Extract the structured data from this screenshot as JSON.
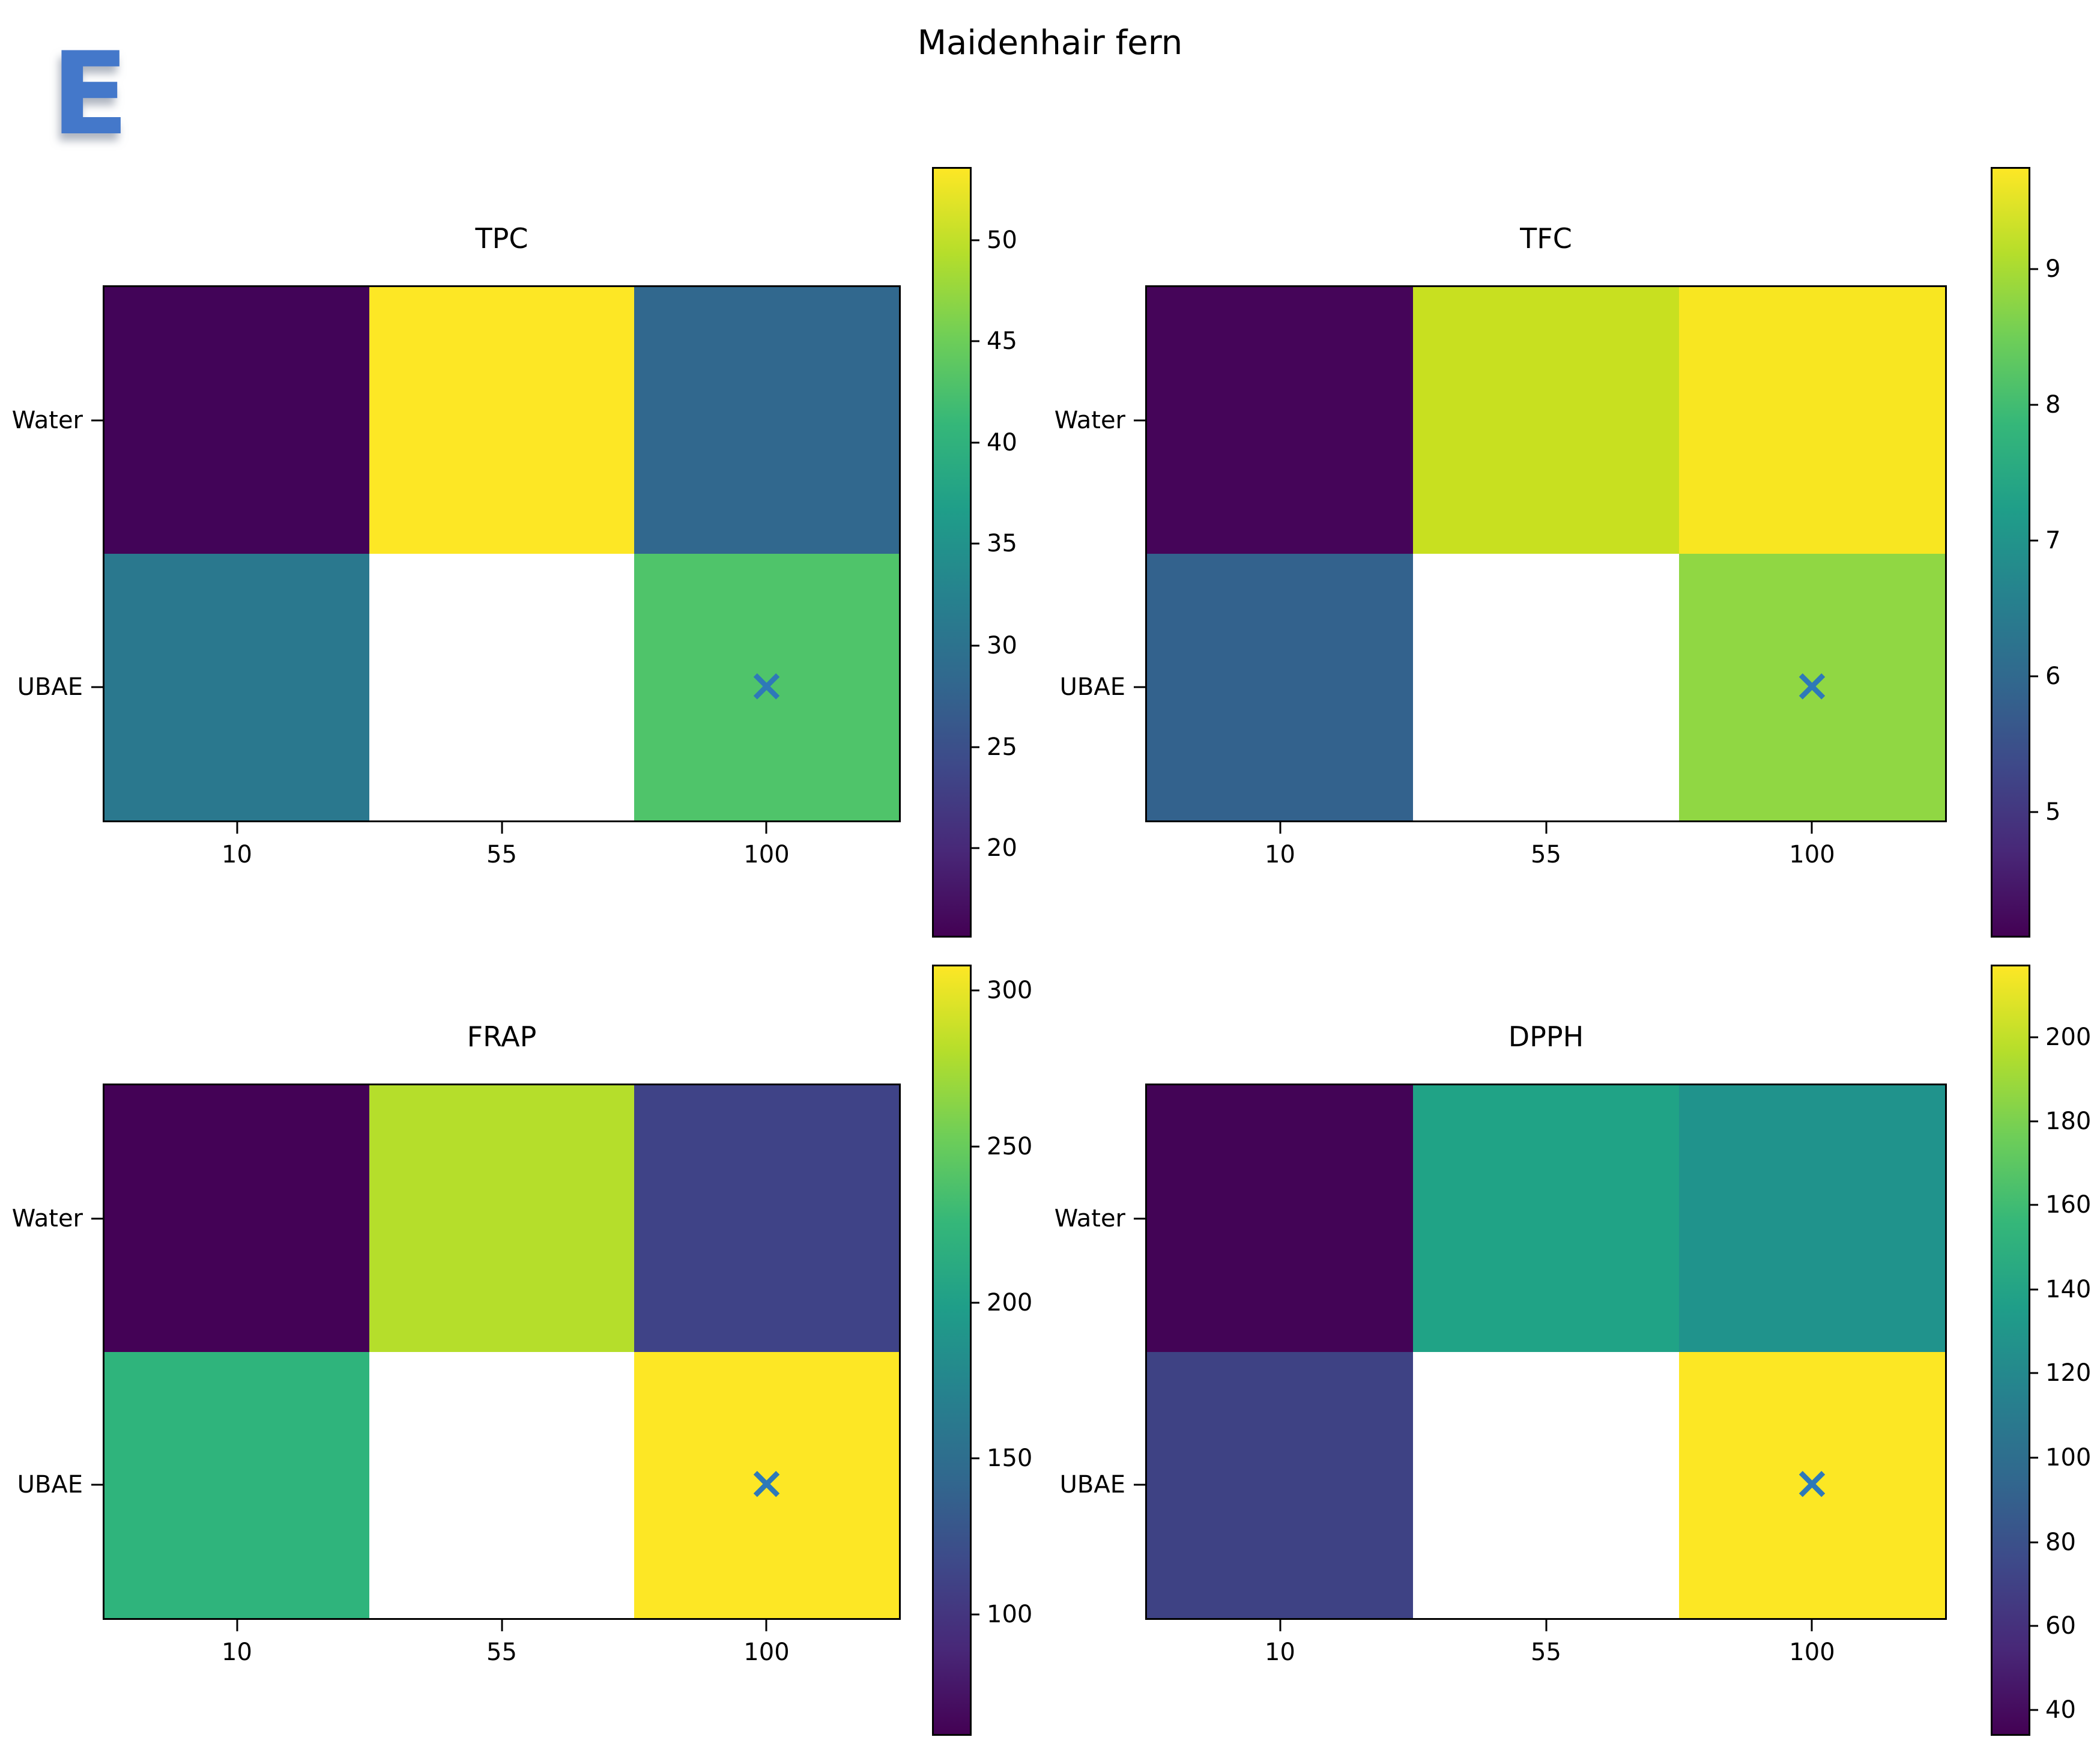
{
  "figure": {
    "suptitle": "Maidenhair fern",
    "corner_label": "E",
    "corner_label_color": "#4478ca",
    "marker_glyph": "×",
    "marker_color": "#2e79b8",
    "background": "#ffffff"
  },
  "axis": {
    "row_labels": [
      "Water",
      "UBAE"
    ],
    "col_labels": [
      "10",
      "55",
      "100"
    ]
  },
  "viridis_stops": [
    "#440154",
    "#482878",
    "#3e4989",
    "#31688e",
    "#26828e",
    "#1f9e89",
    "#35b779",
    "#6ece58",
    "#b5de2b",
    "#fde725"
  ],
  "panels": [
    {
      "title": "TPC",
      "cells": [
        [
          "#420458",
          "#fde725",
          "#31688e"
        ],
        [
          "#2a788e",
          null,
          "#4fc46a"
        ]
      ],
      "colorbar": [
        {
          "v": "50",
          "p": 9.3
        },
        {
          "v": "45",
          "p": 22.5
        },
        {
          "v": "40",
          "p": 35.7
        },
        {
          "v": "35",
          "p": 48.9
        },
        {
          "v": "30",
          "p": 62.2
        },
        {
          "v": "25",
          "p": 75.4
        },
        {
          "v": "20",
          "p": 88.6
        }
      ]
    },
    {
      "title": "TFC",
      "cells": [
        [
          "#450559",
          "#c8e020",
          "#f8e621"
        ],
        [
          "#33628d",
          null,
          "#90d743"
        ]
      ],
      "colorbar": [
        {
          "v": "9",
          "p": 13.1
        },
        {
          "v": "8",
          "p": 30.8
        },
        {
          "v": "7",
          "p": 48.5
        },
        {
          "v": "6",
          "p": 66.2
        },
        {
          "v": "5",
          "p": 83.9
        }
      ]
    },
    {
      "title": "FRAP",
      "cells": [
        [
          "#440256",
          "#b5de2b",
          "#3f4387"
        ],
        [
          "#2fb47c",
          null,
          "#fde725"
        ]
      ],
      "colorbar": [
        {
          "v": "300",
          "p": 3.1
        },
        {
          "v": "250",
          "p": 23.5
        },
        {
          "v": "200",
          "p": 43.8
        },
        {
          "v": "150",
          "p": 64.1
        },
        {
          "v": "100",
          "p": 84.4
        }
      ]
    },
    {
      "title": "DPPH",
      "cells": [
        [
          "#430456",
          "#20a386",
          "#20938c"
        ],
        [
          "#3e4284",
          null,
          "#fce724"
        ]
      ],
      "colorbar": [
        {
          "v": "200",
          "p": 9.2
        },
        {
          "v": "180",
          "p": 20.2
        },
        {
          "v": "160",
          "p": 31.1
        },
        {
          "v": "140",
          "p": 42.1
        },
        {
          "v": "120",
          "p": 53.0
        },
        {
          "v": "100",
          "p": 64.0
        },
        {
          "v": "80",
          "p": 75.0
        },
        {
          "v": "60",
          "p": 85.9
        },
        {
          "v": "40",
          "p": 96.9
        }
      ]
    }
  ],
  "chart_data": [
    {
      "type": "heatmap",
      "title": "TPC",
      "x": [
        "10",
        "55",
        "100"
      ],
      "y": [
        "Water",
        "UBAE"
      ],
      "values": [
        [
          16.5,
          53.4,
          30.0
        ],
        [
          33.0,
          null,
          44.0
        ]
      ],
      "missing_cells": [
        {
          "y": "UBAE",
          "x": "55"
        }
      ],
      "marker_cell": {
        "y": "UBAE",
        "x": "100",
        "symbol": "x"
      },
      "colormap": "viridis",
      "vmin": 15.7,
      "vmax": 53.5,
      "colorbar_ticks": [
        20,
        25,
        30,
        35,
        40,
        45,
        50
      ],
      "legend_position": "right-colorbar",
      "grid": false
    },
    {
      "type": "heatmap",
      "title": "TFC",
      "x": [
        "10",
        "55",
        "100"
      ],
      "y": [
        "Water",
        "UBAE"
      ],
      "values": [
        [
          4.2,
          9.3,
          9.6
        ],
        [
          6.1,
          null,
          8.8
        ]
      ],
      "missing_cells": [
        {
          "y": "UBAE",
          "x": "55"
        }
      ],
      "marker_cell": {
        "y": "UBAE",
        "x": "100",
        "symbol": "x"
      },
      "colormap": "viridis",
      "vmin": 4.1,
      "vmax": 9.7,
      "colorbar_ticks": [
        5,
        6,
        7,
        8,
        9
      ],
      "legend_position": "right-colorbar",
      "grid": false
    },
    {
      "type": "heatmap",
      "title": "FRAP",
      "x": [
        "10",
        "55",
        "100"
      ],
      "y": [
        "Water",
        "UBAE"
      ],
      "values": [
        [
          65,
          280,
          122
        ],
        [
          222,
          null,
          307
        ]
      ],
      "missing_cells": [
        {
          "y": "UBAE",
          "x": "55"
        }
      ],
      "marker_cell": {
        "y": "UBAE",
        "x": "100",
        "symbol": "x"
      },
      "colormap": "viridis",
      "vmin": 62,
      "vmax": 308,
      "colorbar_ticks": [
        100,
        150,
        200,
        250,
        300
      ],
      "legend_position": "right-colorbar",
      "grid": false
    },
    {
      "type": "heatmap",
      "title": "DPPH",
      "x": [
        "10",
        "55",
        "100"
      ],
      "y": [
        "Water",
        "UBAE"
      ],
      "values": [
        [
          45,
          140,
          129
        ],
        [
          80,
          null,
          215
        ]
      ],
      "missing_cells": [
        {
          "y": "UBAE",
          "x": "55"
        }
      ],
      "marker_cell": {
        "y": "UBAE",
        "x": "100",
        "symbol": "x"
      },
      "colormap": "viridis",
      "vmin": 34,
      "vmax": 217,
      "colorbar_ticks": [
        40,
        60,
        80,
        100,
        120,
        140,
        160,
        180,
        200
      ],
      "legend_position": "right-colorbar",
      "grid": false
    }
  ]
}
